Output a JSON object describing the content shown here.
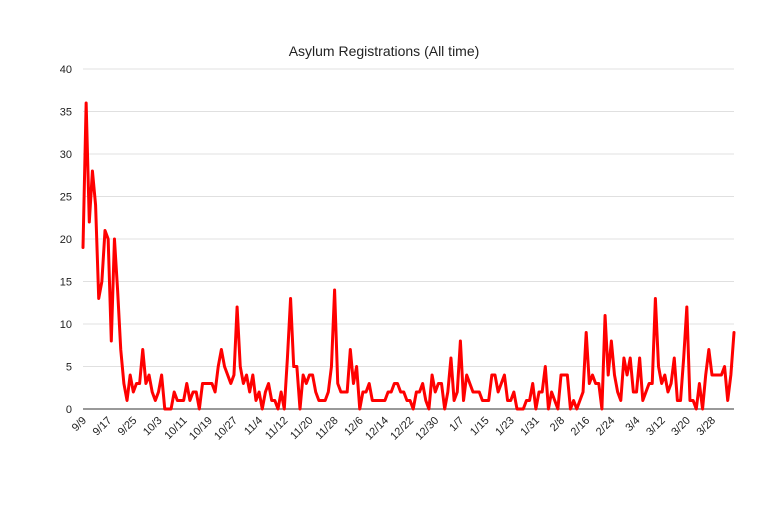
{
  "chart_data": {
    "type": "line",
    "title": "Asylum Registrations (All time)",
    "xlabel": "",
    "ylabel": "",
    "ylim": [
      0,
      40
    ],
    "yticks": [
      "0",
      "5",
      "10",
      "15",
      "20",
      "25",
      "30",
      "35",
      "40"
    ],
    "x_tick_labels": [
      "9/9",
      "9/17",
      "9/25",
      "10/3",
      "10/11",
      "10/19",
      "10/27",
      "11/4",
      "11/12",
      "11/20",
      "11/28",
      "12/6",
      "12/14",
      "12/22",
      "12/30",
      "1/7",
      "1/15",
      "1/23",
      "1/31",
      "2/8",
      "2/16",
      "2/24",
      "3/4",
      "3/12",
      "3/20",
      "3/28"
    ],
    "grid": true,
    "legend": "none",
    "series": [
      {
        "color": "#ff0000",
        "values": [
          19,
          36,
          22,
          28,
          24,
          13,
          15,
          21,
          20,
          8,
          20,
          14,
          7,
          3,
          1,
          4,
          2,
          3,
          3,
          7,
          3,
          4,
          2,
          1,
          2,
          4,
          0,
          0,
          0,
          2,
          1,
          1,
          1,
          3,
          1,
          2,
          2,
          0,
          3,
          3,
          3,
          3,
          2,
          5,
          7,
          5,
          4,
          3,
          4,
          12,
          5,
          3,
          4,
          2,
          4,
          1,
          2,
          0,
          2,
          3,
          1,
          1,
          0,
          2,
          0,
          6,
          13,
          5,
          5,
          0,
          4,
          3,
          4,
          4,
          2,
          1,
          1,
          1,
          2,
          5,
          14,
          3,
          2,
          2,
          2,
          7,
          3,
          5,
          0,
          2,
          2,
          3,
          1,
          1,
          1,
          1,
          1,
          2,
          2,
          3,
          3,
          2,
          2,
          1,
          1,
          0,
          2,
          2,
          3,
          1,
          0,
          4,
          2,
          3,
          3,
          0,
          2,
          6,
          1,
          2,
          8,
          1,
          4,
          3,
          2,
          2,
          2,
          1,
          1,
          1,
          4,
          4,
          2,
          3,
          4,
          1,
          1,
          2,
          0,
          0,
          0,
          1,
          1,
          3,
          0,
          2,
          2,
          5,
          0,
          2,
          1,
          0,
          4,
          4,
          4,
          0,
          1,
          0,
          1,
          2,
          9,
          3,
          4,
          3,
          3,
          0,
          11,
          4,
          8,
          4,
          2,
          1,
          6,
          4,
          6,
          2,
          2,
          6,
          1,
          2,
          3,
          3,
          13,
          5,
          3,
          4,
          2,
          3,
          6,
          1,
          1,
          6,
          12,
          1,
          1,
          0,
          3,
          0,
          4,
          7,
          4,
          4,
          4,
          4,
          5,
          1,
          4,
          9
        ]
      }
    ]
  }
}
